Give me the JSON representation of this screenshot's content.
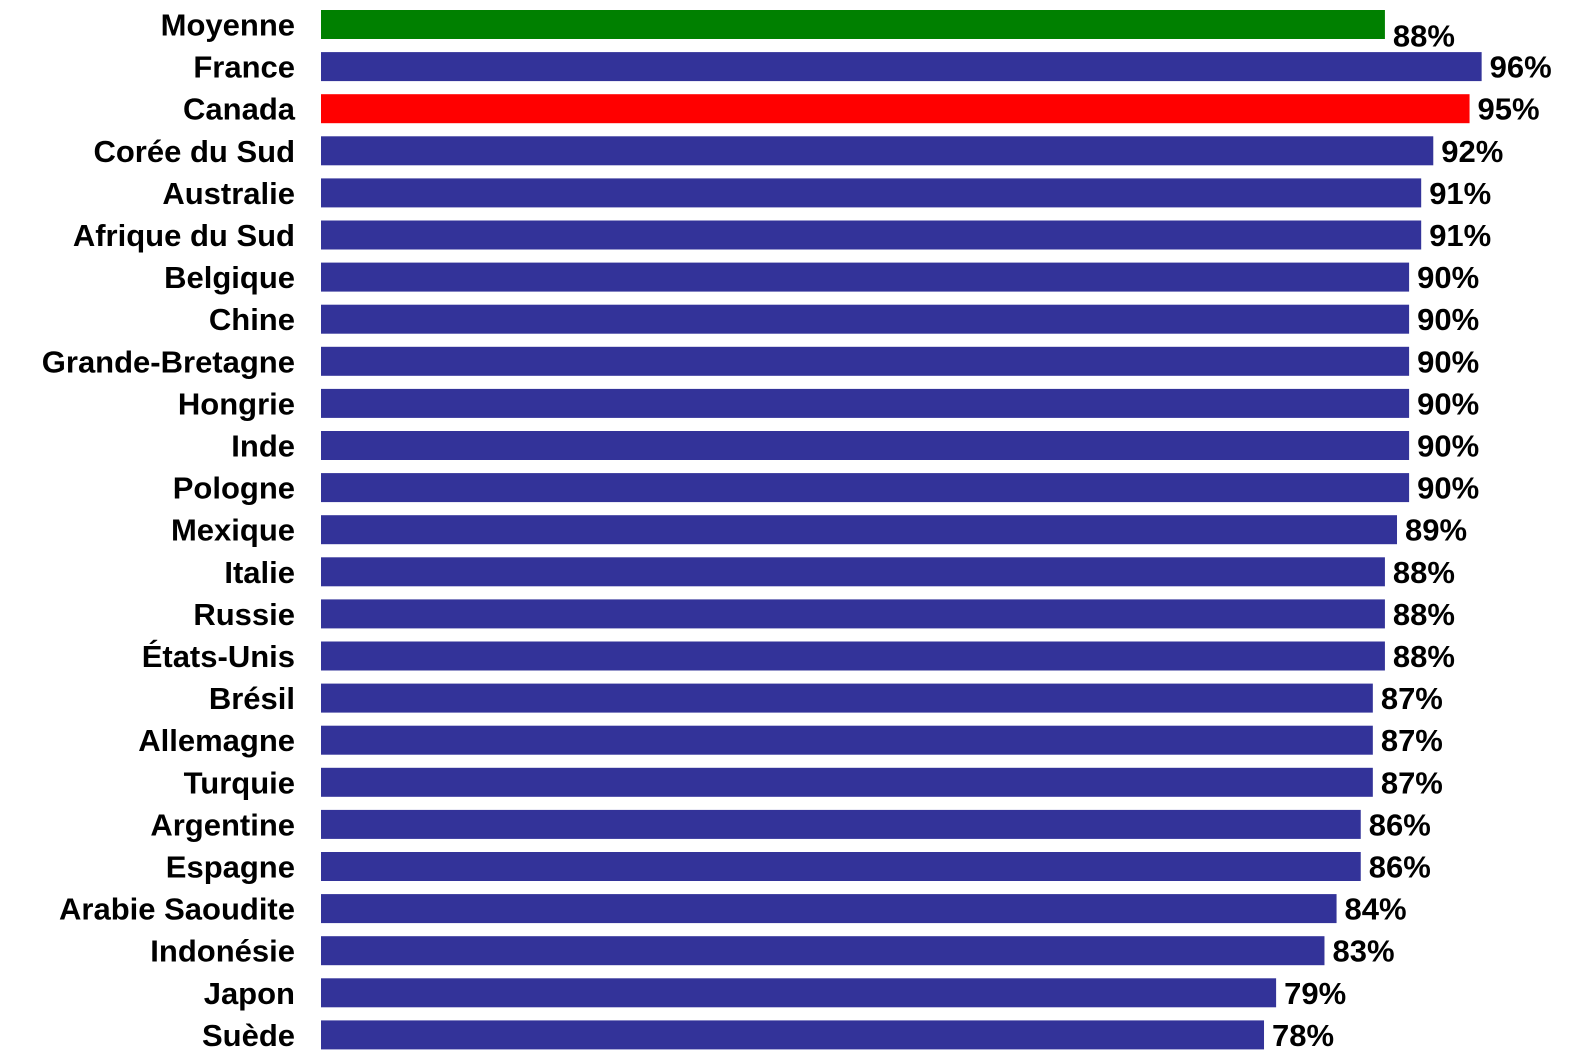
{
  "chart_data": {
    "type": "bar",
    "orientation": "horizontal",
    "title": "",
    "xlabel": "",
    "ylabel": "",
    "xlim": [
      0,
      100
    ],
    "grid": false,
    "legend": "none",
    "value_suffix": "%",
    "categories": [
      "Moyenne",
      "France",
      "Canada",
      "Corée du Sud",
      "Australie",
      "Afrique du Sud",
      "Belgique",
      "Chine",
      "Grande-Bretagne",
      "Hongrie",
      "Inde",
      "Pologne",
      "Mexique",
      "Italie",
      "Russie",
      "États-Unis",
      "Brésil",
      "Allemagne",
      "Turquie",
      "Argentine",
      "Espagne",
      "Arabie Saoudite",
      "Indonésie",
      "Japon",
      "Suède"
    ],
    "values": [
      88,
      96,
      95,
      92,
      91,
      91,
      90,
      90,
      90,
      90,
      90,
      90,
      89,
      88,
      88,
      88,
      87,
      87,
      87,
      86,
      86,
      84,
      83,
      79,
      78
    ],
    "value_labels": [
      "88%",
      "96%",
      "95%",
      "92%",
      "91%",
      "91%",
      "90%",
      "90%",
      "90%",
      "90%",
      "90%",
      "90%",
      "89%",
      "88%",
      "88%",
      "88%",
      "87%",
      "87%",
      "87%",
      "86%",
      "86%",
      "84%",
      "83%",
      "79%",
      "78%"
    ],
    "colors": {
      "default": "#333399",
      "highlight_average": "#008000",
      "highlight_canada": "#ff0000"
    },
    "bar_color_keys": [
      "highlight_average",
      "default",
      "highlight_canada",
      "default",
      "default",
      "default",
      "default",
      "default",
      "default",
      "default",
      "default",
      "default",
      "default",
      "default",
      "default",
      "default",
      "default",
      "default",
      "default",
      "default",
      "default",
      "default",
      "default",
      "default",
      "default"
    ]
  }
}
